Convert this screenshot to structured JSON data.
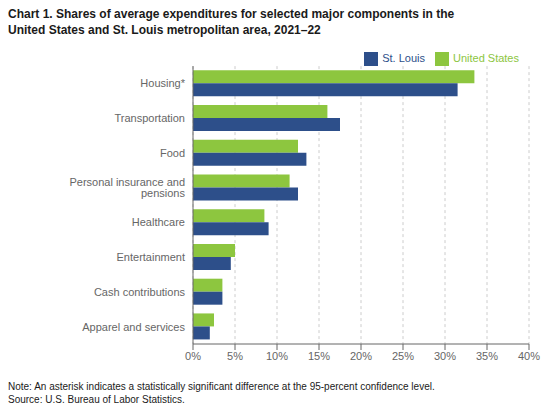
{
  "chart_data": {
    "type": "bar",
    "orientation": "horizontal",
    "title": "Chart 1. Shares of average expenditures for selected major components in the\nUnited States and St. Louis metropolitan area, 2021–22",
    "categories": [
      "Apparel and services",
      "Cash contributions",
      "Entertainment",
      "Healthcare",
      "Personal insurance and pensions",
      "Food",
      "Transportation",
      "Housing*"
    ],
    "series": [
      {
        "name": "United States",
        "color": "#8dc63f",
        "values": [
          2.5,
          3.5,
          5.0,
          8.5,
          11.5,
          12.5,
          16.0,
          33.5
        ]
      },
      {
        "name": "St. Louis",
        "color": "#2d4f8a",
        "values": [
          2.0,
          3.5,
          4.5,
          9.0,
          12.5,
          13.5,
          17.5,
          31.5
        ]
      }
    ],
    "xlim": [
      0,
      40
    ],
    "xticks": [
      {
        "value": 0,
        "label": "0%"
      },
      {
        "value": 5,
        "label": "5%"
      },
      {
        "value": 10,
        "label": "10%"
      },
      {
        "value": 15,
        "label": "15%"
      },
      {
        "value": 20,
        "label": "20%"
      },
      {
        "value": 25,
        "label": "25%"
      },
      {
        "value": 30,
        "label": "30%"
      },
      {
        "value": 35,
        "label": "35%"
      },
      {
        "value": 40,
        "label": "40%"
      }
    ],
    "grid": true,
    "legend": "upper right",
    "annotations": [
      "Note: An asterisk indicates a statistically significant difference at the 95-percent confidence level.",
      "Source: U.S. Bureau of Labor Statistics."
    ]
  }
}
